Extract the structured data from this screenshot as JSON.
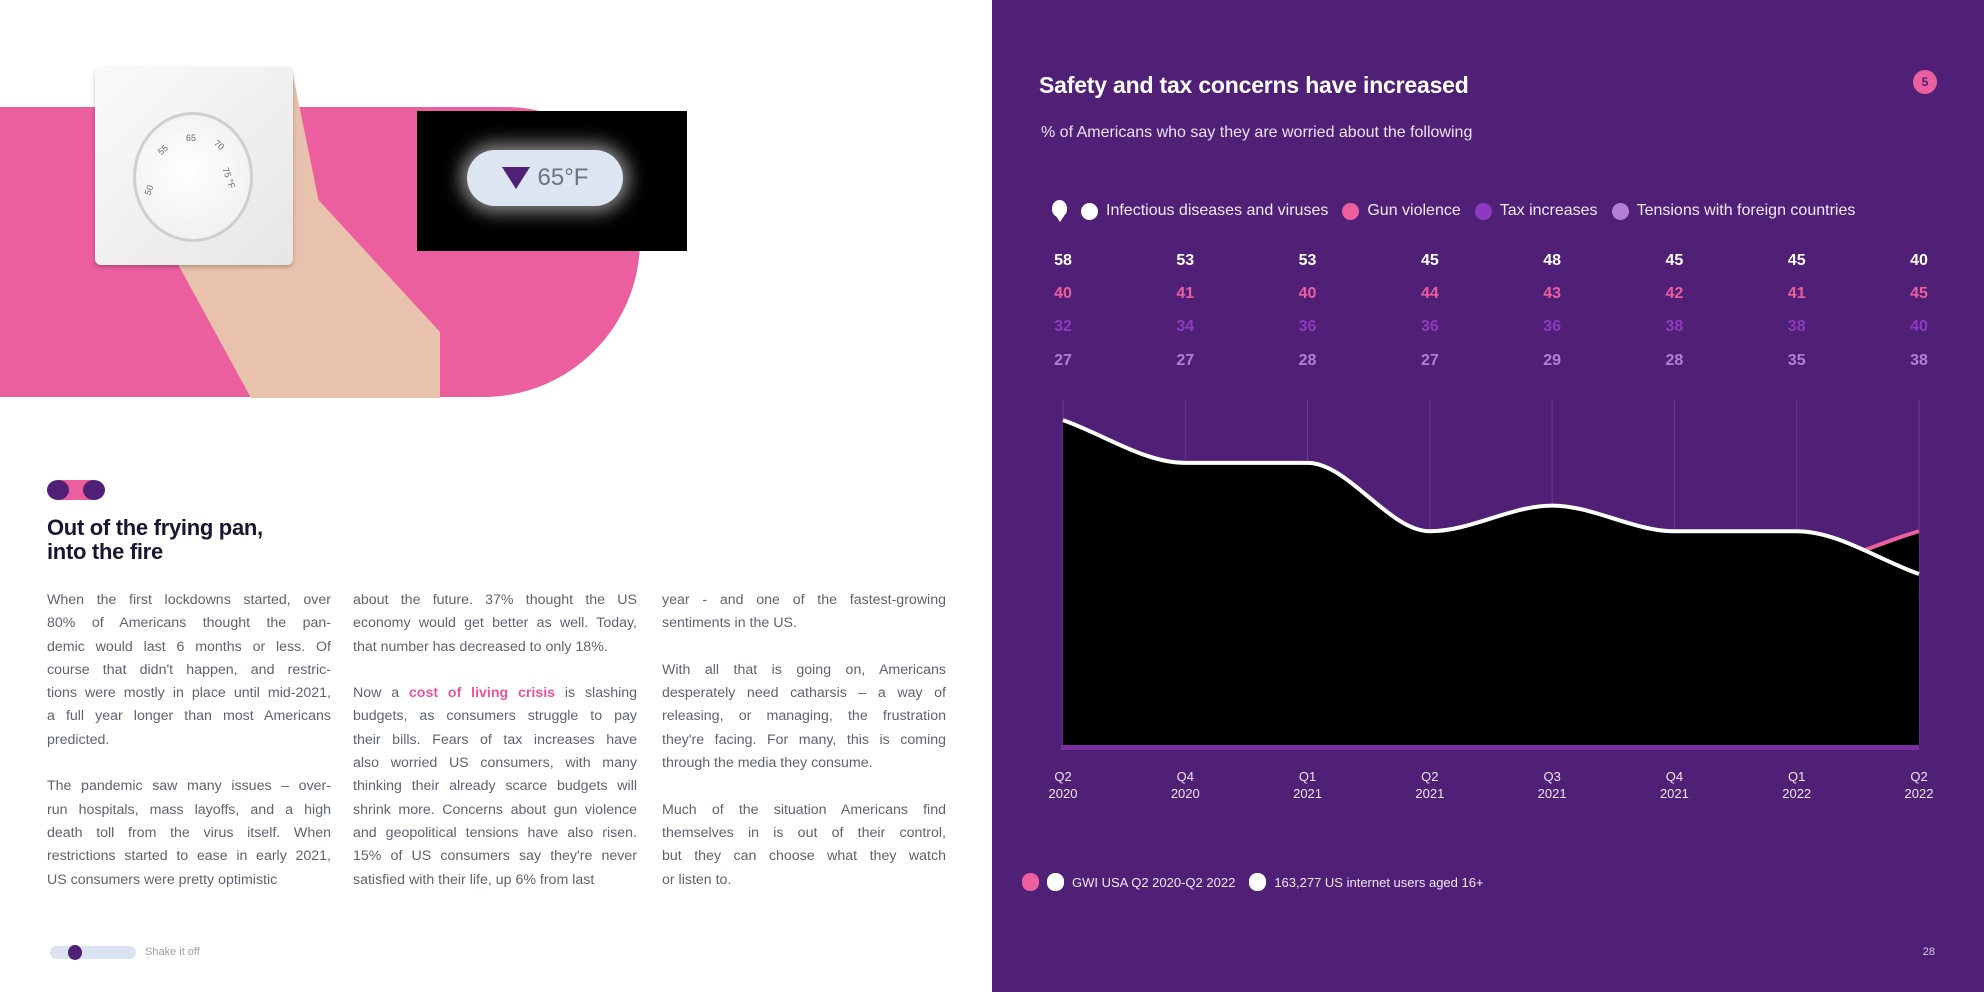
{
  "left_page": {
    "image": {
      "thermostat_dial_labels": [
        "50",
        "55",
        "65",
        "70",
        "75 °F"
      ],
      "display_value": "65°F",
      "display_icon": "down-triangle-icon"
    },
    "heading": [
      "Out of the frying pan,",
      "into the fire"
    ],
    "columns": [
      [
        [
          "When the first lockdowns started, over",
          "80% of Americans thought the pan-",
          "demic would last 6 months or less. Of",
          "course that didn't happen, and restric-",
          "tions were mostly in place until mid-2021,",
          "a full year longer than most Americans",
          "predicted."
        ],
        [
          "The pandemic saw many issues – over-",
          "run hospitals, mass layoffs, and a high",
          "death toll from the virus itself. When",
          "restrictions started to ease in early 2021,",
          "US consumers were pretty optimistic"
        ]
      ],
      [
        [
          "about the future. 37% thought the US",
          "economy would get better as well. Today,",
          "that number has decreased to only 18%."
        ],
        [
          {
            "pre": "Now a ",
            "highlight": "cost of living crisis",
            "post": " is slashing"
          },
          "budgets, as consumers struggle to pay",
          "their bills. Fears of tax increases have",
          "also worried US consumers, with many",
          "thinking their already scarce budgets will",
          "shrink more. Concerns about gun violence",
          "and geopolitical tensions have also risen.",
          "15% of US consumers say they're never",
          "satisfied with their life, up 6% from last"
        ]
      ],
      [
        [
          "year - and one of the fastest-growing",
          "sentiments in the US."
        ],
        [
          "With all that is going on, Americans",
          "desperately need catharsis – a way of",
          "releasing, or managing, the frustration",
          "they're facing. For many, this is coming",
          "through the media they consume."
        ],
        [
          "Much of the situation Americans find",
          "themselves in is out of their control,",
          "but they can choose what they watch",
          "or listen to."
        ]
      ]
    ],
    "footer": {
      "section_label": "Shake it off"
    }
  },
  "right_page": {
    "badge": "5",
    "page_number": "28",
    "footer": {
      "source": "GWI USA Q2 2020-Q2 2022",
      "sample": "163,277 US internet users aged 16+"
    }
  },
  "colors": {
    "purple": "#4f2075",
    "pink": "#ec5f9f",
    "tax": "#8e3ac0",
    "tensions": "#b47ed8"
  },
  "chart_data": {
    "type": "line",
    "title": "Safety and tax concerns have increased",
    "subtitle": "% of Americans who say they are worried about the following",
    "legend_icon": "map-pin-icon",
    "legend_placement": "top",
    "categories": [
      [
        "Q2",
        "2020"
      ],
      [
        "Q4",
        "2020"
      ],
      [
        "Q1",
        "2021"
      ],
      [
        "Q2",
        "2021"
      ],
      [
        "Q3",
        "2021"
      ],
      [
        "Q4",
        "2021"
      ],
      [
        "Q1",
        "2022"
      ],
      [
        "Q2",
        "2022"
      ]
    ],
    "series": [
      {
        "name": "Infectious diseases and viruses",
        "color": "#ffffff",
        "values": [
          58,
          53,
          53,
          45,
          48,
          45,
          45,
          40
        ]
      },
      {
        "name": "Gun violence",
        "color": "#ec5f9f",
        "values": [
          40,
          41,
          40,
          44,
          43,
          42,
          41,
          45
        ]
      },
      {
        "name": "Tax increases",
        "color": "#8e3ac0",
        "values": [
          32,
          34,
          36,
          36,
          36,
          38,
          38,
          40
        ]
      },
      {
        "name": "Tensions with foreign countries",
        "color": "#b47ed8",
        "values": [
          27,
          27,
          28,
          27,
          29,
          28,
          35,
          38
        ]
      }
    ],
    "ylim": [
      20,
      60
    ],
    "area_fill": "#000000",
    "grid": "vertical"
  }
}
